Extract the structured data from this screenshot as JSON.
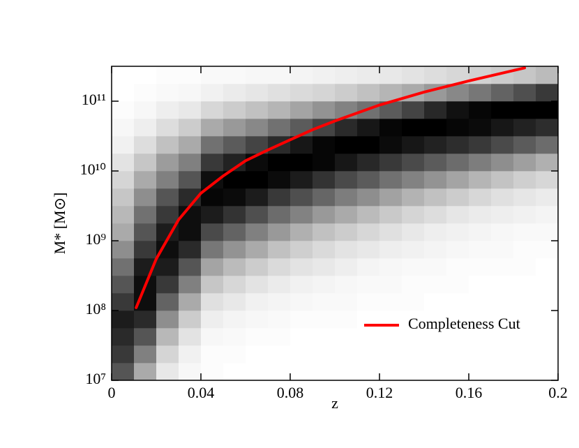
{
  "chart_data": {
    "type": "heatmap",
    "xlabel": "z",
    "ylabel": "M* [M⊙]",
    "xlim": [
      0,
      0.2
    ],
    "xticks": [
      0,
      0.04,
      0.08,
      0.12,
      0.16,
      0.2
    ],
    "ylim": [
      10000000,
      316227766017
    ],
    "ylog": true,
    "yticks": [
      {
        "value": 10000000,
        "label": "10⁷"
      },
      {
        "value": 100000000,
        "label": "10⁸"
      },
      {
        "value": 1000000000,
        "label": "10⁹"
      },
      {
        "value": 10000000000,
        "label": "10¹⁰"
      },
      {
        "value": 100000000000,
        "label": "10¹¹"
      }
    ],
    "legend": "lower right",
    "xbins": [
      0,
      0.01,
      0.02,
      0.03,
      0.04,
      0.05,
      0.06,
      0.07,
      0.08,
      0.09,
      0.1,
      0.11,
      0.12,
      0.13,
      0.14,
      0.15,
      0.16,
      0.17,
      0.18,
      0.19,
      0.2
    ],
    "ybins": [
      10000000,
      17782794,
      31622777,
      56234133,
      100000000,
      177827941,
      316227766,
      562341325,
      1000000000,
      1778279410,
      3162277660,
      5623413252,
      10000000000,
      17782794100,
      31622776602,
      56234132519,
      100000000000,
      177827941004,
      316227766017
    ],
    "values": [
      [
        60,
        70,
        75,
        80,
        70,
        60,
        50,
        40,
        30,
        25,
        20,
        15,
        10,
        5,
        3,
        1,
        0,
        0
      ],
      [
        30,
        45,
        60,
        75,
        85,
        85,
        80,
        70,
        60,
        50,
        40,
        30,
        20,
        12,
        6,
        3,
        1,
        0
      ],
      [
        8,
        15,
        25,
        40,
        55,
        70,
        80,
        85,
        80,
        70,
        60,
        45,
        35,
        22,
        12,
        6,
        2,
        1
      ],
      [
        3,
        5,
        10,
        18,
        30,
        45,
        60,
        75,
        85,
        85,
        75,
        60,
        45,
        30,
        18,
        8,
        3,
        1
      ],
      [
        1,
        1,
        3,
        6,
        11,
        20,
        32,
        48,
        64,
        80,
        88,
        85,
        70,
        50,
        30,
        14,
        5,
        2
      ],
      [
        0,
        1,
        2,
        4,
        8,
        14,
        24,
        38,
        55,
        72,
        86,
        90,
        78,
        58,
        36,
        18,
        7,
        2
      ],
      [
        0,
        0,
        1,
        3,
        5,
        10,
        18,
        30,
        45,
        62,
        80,
        90,
        86,
        66,
        42,
        22,
        9,
        3
      ],
      [
        0,
        0,
        1,
        2,
        4,
        7,
        13,
        22,
        36,
        52,
        70,
        86,
        90,
        75,
        50,
        26,
        11,
        3
      ],
      [
        0,
        0,
        0,
        1,
        3,
        5,
        10,
        17,
        28,
        44,
        62,
        80,
        90,
        82,
        58,
        32,
        13,
        4
      ],
      [
        0,
        0,
        0,
        1,
        2,
        4,
        8,
        13,
        22,
        36,
        54,
        72,
        88,
        88,
        66,
        38,
        15,
        5
      ],
      [
        0,
        0,
        0,
        1,
        2,
        3,
        6,
        10,
        18,
        30,
        46,
        64,
        82,
        90,
        75,
        44,
        18,
        6
      ],
      [
        0,
        0,
        0,
        0,
        1,
        2,
        4,
        8,
        14,
        24,
        40,
        58,
        76,
        90,
        82,
        50,
        22,
        7
      ],
      [
        0,
        0,
        0,
        0,
        1,
        2,
        3,
        6,
        11,
        19,
        33,
        50,
        70,
        86,
        88,
        58,
        26,
        8
      ],
      [
        0,
        0,
        0,
        0,
        1,
        1,
        2,
        5,
        8,
        15,
        27,
        44,
        64,
        82,
        90,
        66,
        30,
        10
      ],
      [
        0,
        0,
        0,
        0,
        0,
        1,
        2,
        4,
        6,
        12,
        22,
        38,
        58,
        78,
        90,
        76,
        36,
        12
      ],
      [
        0,
        0,
        0,
        0,
        0,
        1,
        1,
        3,
        5,
        9,
        18,
        32,
        52,
        74,
        88,
        84,
        42,
        14
      ],
      [
        0,
        0,
        0,
        0,
        0,
        0,
        1,
        2,
        4,
        7,
        14,
        26,
        46,
        70,
        86,
        88,
        48,
        16
      ],
      [
        0,
        0,
        0,
        0,
        0,
        0,
        1,
        2,
        3,
        6,
        11,
        21,
        40,
        64,
        82,
        90,
        55,
        18
      ],
      [
        0,
        0,
        0,
        0,
        0,
        0,
        1,
        1,
        2,
        5,
        9,
        17,
        34,
        58,
        78,
        90,
        62,
        20
      ],
      [
        0,
        0,
        0,
        0,
        0,
        0,
        0,
        1,
        2,
        4,
        7,
        14,
        28,
        52,
        74,
        90,
        70,
        24
      ]
    ],
    "series": [
      {
        "name": "Completeness Cut",
        "type": "line",
        "color": "#ff0000",
        "x": [
          0.011,
          0.02,
          0.03,
          0.04,
          0.05,
          0.06,
          0.07,
          0.08,
          0.09,
          0.1,
          0.12,
          0.14,
          0.16,
          0.185
        ],
        "values": [
          110000000,
          550000000,
          2000000000,
          4800000000,
          8500000000,
          14000000000,
          20000000000,
          28000000000,
          39000000000,
          52000000000,
          88000000000,
          135000000000,
          195000000000,
          300000000000
        ]
      }
    ]
  }
}
